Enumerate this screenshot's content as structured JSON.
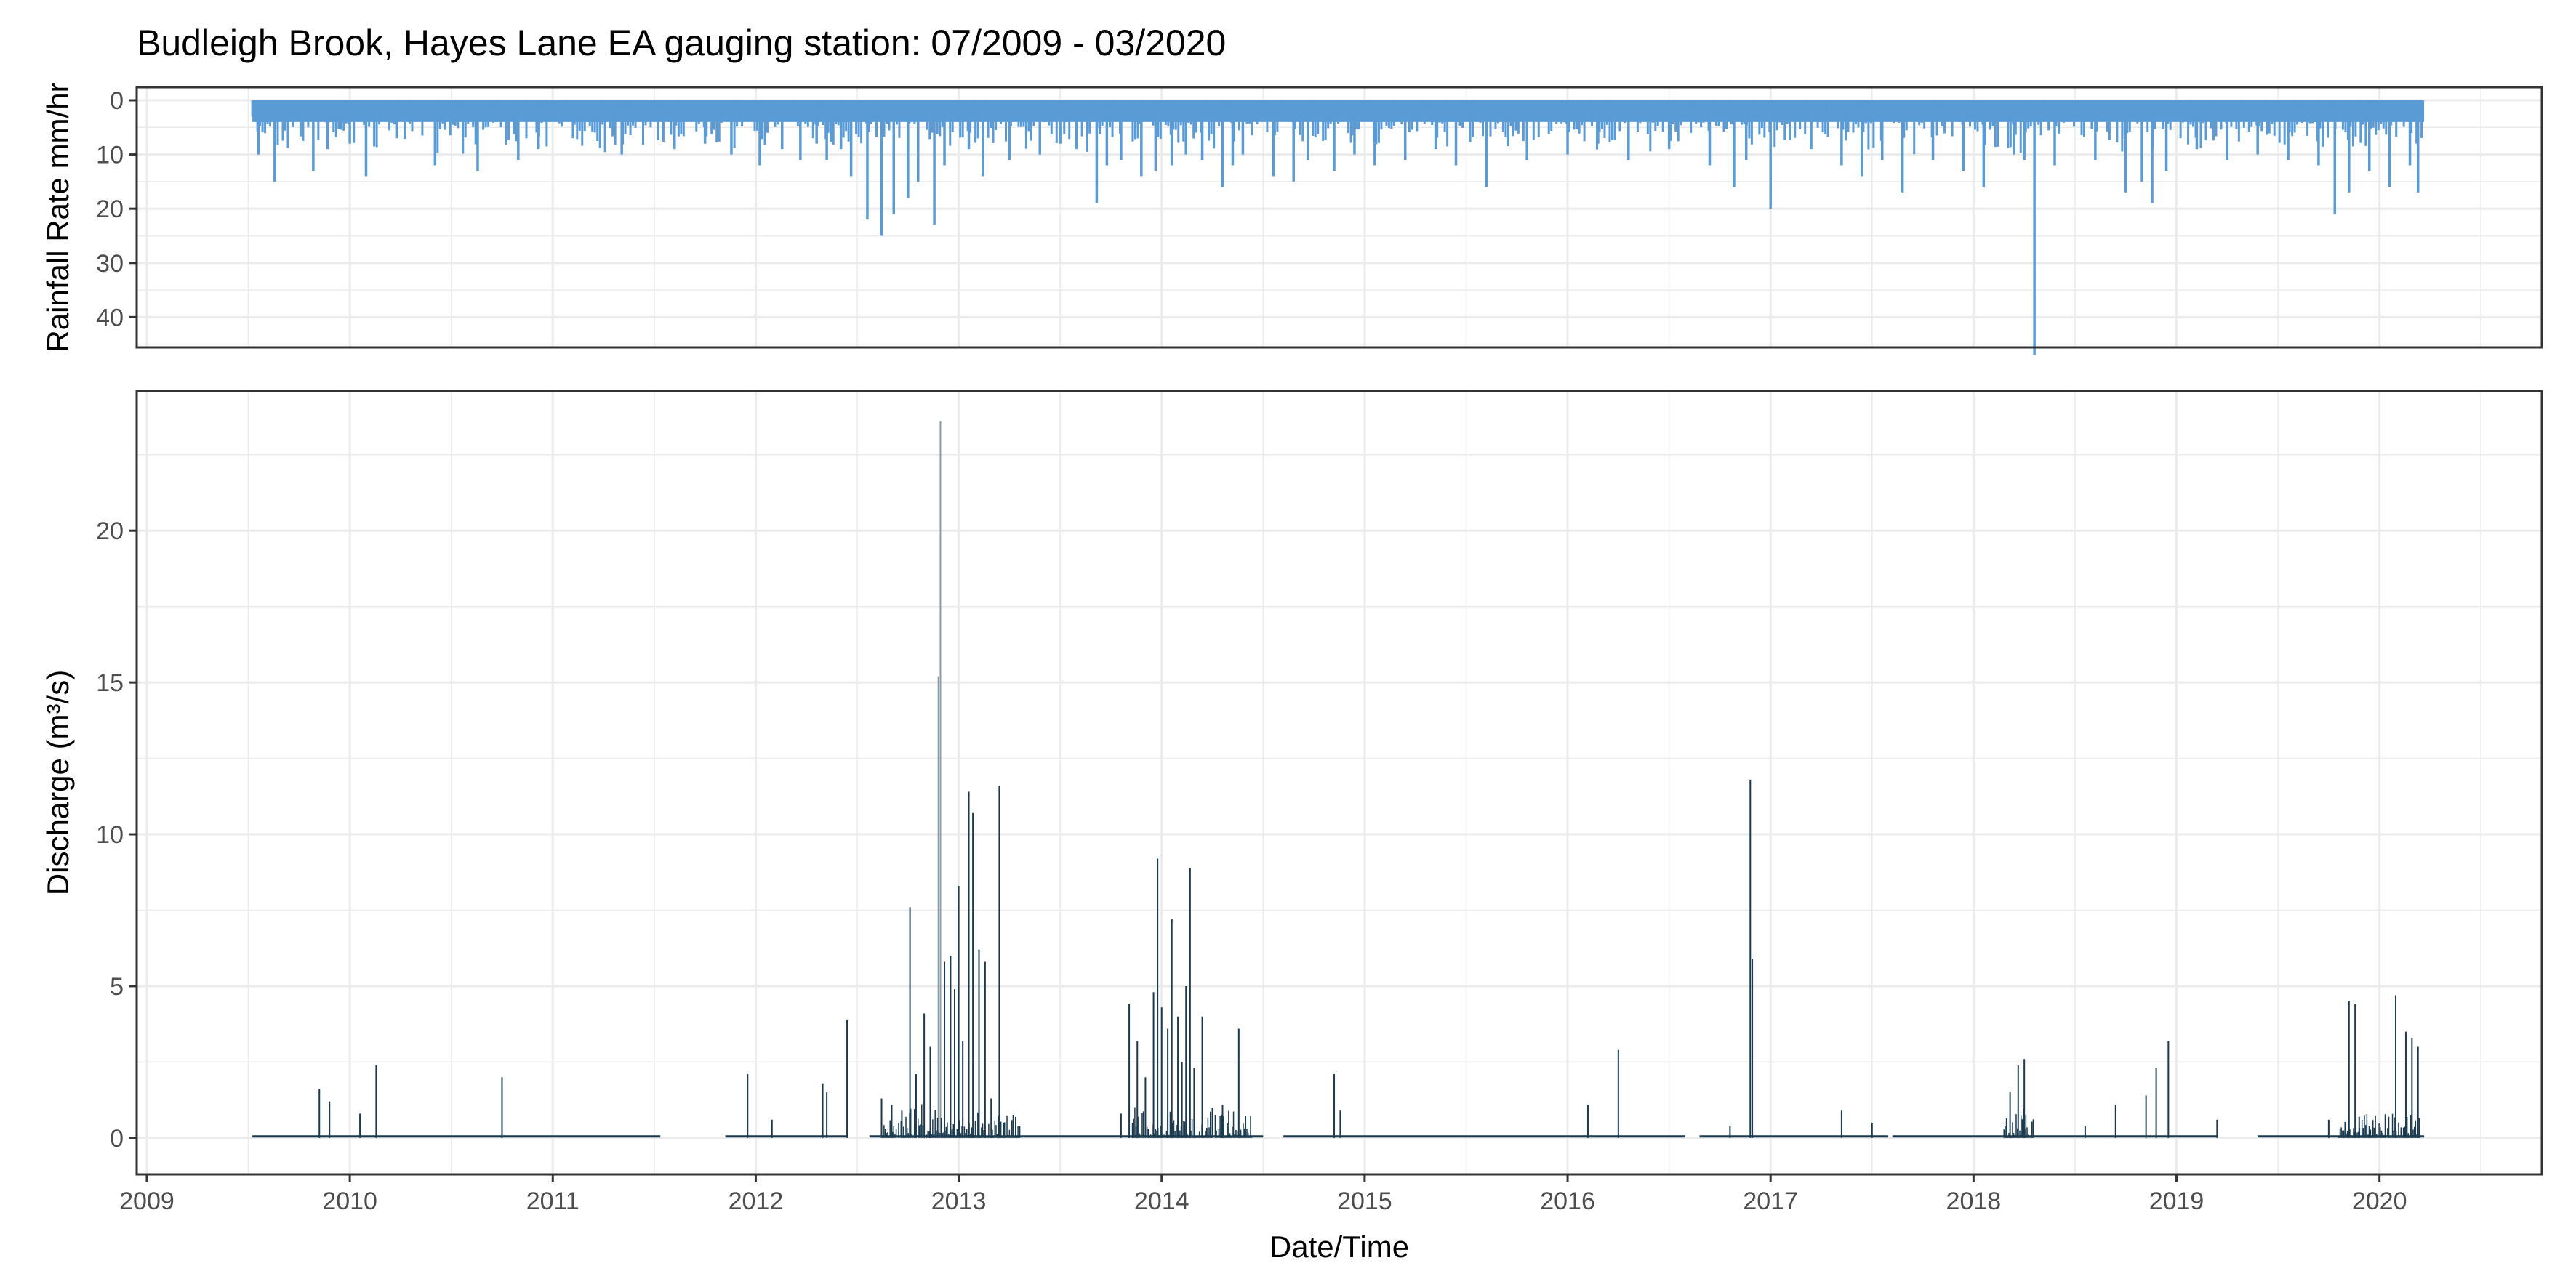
{
  "title": "Budleigh Brook, Hayes Lane EA gauging station: 07/2009 - 03/2020",
  "colors": {
    "rainfall": "#5B9BD5",
    "discharge": "#1C3A4E",
    "grid": "#EBEBEB",
    "border": "#333333",
    "tick_text": "#4D4D4D"
  },
  "chart_data": [
    {
      "type": "bar",
      "name": "rainfall",
      "ylabel": "Rainfall Rate mm/hr",
      "y_reversed": true,
      "ylim": [
        0,
        48
      ],
      "xlim": [
        2008.95,
        2020.8
      ],
      "yticks": [
        0,
        10,
        20,
        30,
        40
      ],
      "ytick_labels": [
        "0",
        "10",
        "20",
        "30",
        "40"
      ],
      "base_fill_level": 4,
      "data_start": 2009.52,
      "data_end": 2020.22,
      "x": [
        2009.55,
        2009.63,
        2009.82,
        2009.89,
        2010.0,
        2010.08,
        2010.23,
        2010.42,
        2010.63,
        2010.83,
        2010.93,
        2011.1,
        2011.34,
        2011.6,
        2011.75,
        2011.88,
        2012.02,
        2012.13,
        2012.22,
        2012.3,
        2012.35,
        2012.42,
        2012.47,
        2012.55,
        2012.62,
        2012.68,
        2012.75,
        2012.8,
        2012.88,
        2012.93,
        2013.05,
        2013.12,
        2013.25,
        2013.4,
        2013.5,
        2013.58,
        2013.68,
        2013.73,
        2013.8,
        2013.9,
        2013.97,
        2014.05,
        2014.12,
        2014.2,
        2014.3,
        2014.35,
        2014.4,
        2014.55,
        2014.65,
        2014.72,
        2014.85,
        2014.95,
        2015.05,
        2015.2,
        2015.35,
        2015.45,
        2015.6,
        2015.8,
        2016.0,
        2016.15,
        2016.3,
        2016.5,
        2016.7,
        2016.82,
        2016.88,
        2017.0,
        2017.2,
        2017.35,
        2017.45,
        2017.55,
        2017.65,
        2017.8,
        2017.95,
        2018.05,
        2018.2,
        2018.25,
        2018.3,
        2018.4,
        2018.6,
        2018.75,
        2018.83,
        2018.88,
        2018.95,
        2019.1,
        2019.25,
        2019.4,
        2019.55,
        2019.7,
        2019.78,
        2019.85,
        2019.95,
        2020.05,
        2020.15,
        2020.19
      ],
      "values": [
        10,
        15,
        13,
        9,
        8,
        14,
        7,
        12,
        13,
        11,
        9,
        7,
        10,
        9,
        8,
        10,
        12,
        9,
        11,
        8,
        11,
        9,
        14,
        22,
        25,
        21,
        18,
        15,
        23,
        12,
        9,
        14,
        11,
        10,
        8,
        9,
        19,
        12,
        11,
        14,
        13,
        12,
        10,
        11,
        16,
        12,
        10,
        14,
        15,
        11,
        13,
        10,
        12,
        11,
        9,
        12,
        16,
        11,
        10,
        8,
        11,
        9,
        12,
        16,
        11,
        20,
        9,
        12,
        14,
        11,
        17,
        11,
        13,
        16,
        10,
        11,
        47,
        12,
        11,
        17,
        15,
        19,
        13,
        9,
        11,
        10,
        11,
        12,
        21,
        17,
        13,
        16,
        12,
        17
      ]
    },
    {
      "type": "bar",
      "name": "discharge",
      "ylabel": "Discharge  (m³/s)",
      "xlabel": "Date/Time",
      "ylim": [
        -1.2,
        24.6
      ],
      "xlim": [
        2008.95,
        2020.8
      ],
      "yticks": [
        0,
        5,
        10,
        15,
        20
      ],
      "ytick_labels": [
        "0",
        "5",
        "10",
        "15",
        "20"
      ],
      "xticks": [
        2009,
        2010,
        2011,
        2012,
        2013,
        2014,
        2015,
        2016,
        2017,
        2018,
        2019,
        2020
      ],
      "xtick_labels": [
        "2009",
        "2010",
        "2011",
        "2012",
        "2013",
        "2014",
        "2015",
        "2016",
        "2017",
        "2018",
        "2019",
        "2020"
      ],
      "baseline_segments": [
        [
          2009.52,
          2011.53
        ],
        [
          2011.85,
          2012.45
        ],
        [
          2012.56,
          2014.5
        ],
        [
          2014.6,
          2016.58
        ],
        [
          2016.65,
          2017.58
        ],
        [
          2017.6,
          2019.2
        ],
        [
          2019.4,
          2020.22
        ]
      ],
      "x": [
        2009.85,
        2009.9,
        2010.05,
        2010.13,
        2010.75,
        2011.96,
        2012.08,
        2012.33,
        2012.35,
        2012.45,
        2012.62,
        2012.67,
        2012.72,
        2012.76,
        2012.79,
        2012.83,
        2012.86,
        2012.9,
        2012.91,
        2012.93,
        2012.96,
        2012.98,
        2013.0,
        2013.02,
        2013.05,
        2013.07,
        2013.1,
        2013.13,
        2013.16,
        2013.2,
        2013.22,
        2013.3,
        2013.8,
        2013.84,
        2013.88,
        2013.92,
        2013.96,
        2013.98,
        2014.0,
        2014.03,
        2014.05,
        2014.08,
        2014.1,
        2014.12,
        2014.14,
        2014.16,
        2014.2,
        2014.25,
        2014.3,
        2014.38,
        2014.85,
        2014.88,
        2016.1,
        2016.25,
        2016.8,
        2016.9,
        2016.91,
        2017.35,
        2017.5,
        2018.18,
        2018.22,
        2018.25,
        2018.55,
        2018.7,
        2018.85,
        2018.9,
        2018.96,
        2019.2,
        2019.75,
        2019.85,
        2019.88,
        2019.9,
        2019.95,
        2020.08,
        2020.13,
        2020.16,
        2020.19
      ],
      "values": [
        1.6,
        1.2,
        0.8,
        2.4,
        2.0,
        2.1,
        0.6,
        1.8,
        1.5,
        3.9,
        1.3,
        1.1,
        0.9,
        7.6,
        2.1,
        4.1,
        3.0,
        15.2,
        23.6,
        5.8,
        6.0,
        4.9,
        8.3,
        3.2,
        11.4,
        10.7,
        6.2,
        5.8,
        1.3,
        11.6,
        0.5,
        0.4,
        0.8,
        4.4,
        3.2,
        2.0,
        4.8,
        9.2,
        4.3,
        3.6,
        7.2,
        4.0,
        2.5,
        5.0,
        8.9,
        2.3,
        4.0,
        1.0,
        1.1,
        3.6,
        2.1,
        0.9,
        1.1,
        2.9,
        0.4,
        11.8,
        5.9,
        0.9,
        0.5,
        1.5,
        2.4,
        2.6,
        0.4,
        1.1,
        1.4,
        2.3,
        3.2,
        0.6,
        0.6,
        4.5,
        4.4,
        0.7,
        0.4,
        4.7,
        3.5,
        3.3,
        3.0
      ]
    }
  ]
}
